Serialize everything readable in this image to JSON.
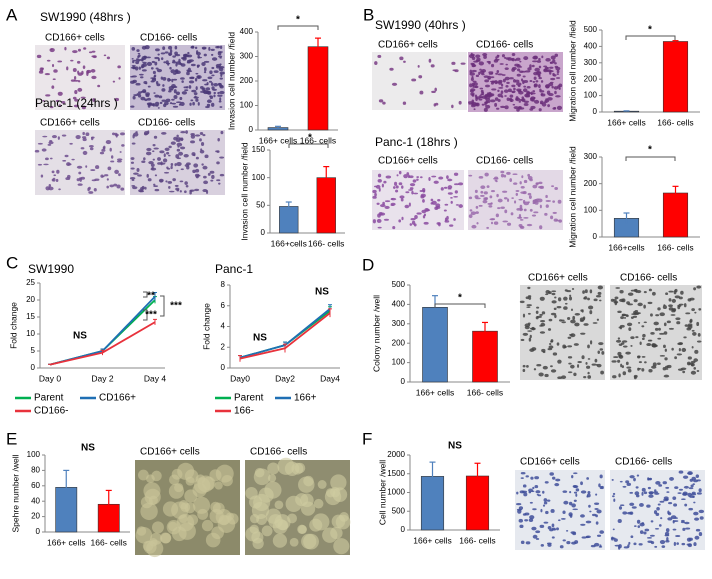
{
  "figure": {
    "panel_labels": [
      "A",
      "B",
      "C",
      "D",
      "E",
      "F"
    ],
    "image_captions": [
      "CD166+ cells",
      "CD166- cells",
      "CD166+ cells",
      "CD166- cells",
      "CD166+ cells",
      "CD166- cells",
      "CD166+ cells",
      "CD166- cells",
      "CD166+ cells",
      "CD166- cells",
      "CD166+ cells",
      "CD166- cells",
      "CD166+ cells",
      "CD166- cells"
    ]
  },
  "chart_data": [
    {
      "type": "bar",
      "title": "SW1990 (48hrs )",
      "y_label": "Invasion cell number /field",
      "categories": [
        "166+ cells",
        "166- cells"
      ],
      "values": [
        10,
        340
      ],
      "errors": [
        5,
        35
      ],
      "colors": [
        "#4f81bd",
        "#ff0000"
      ],
      "ylim": [
        0,
        400
      ],
      "yticks": [
        0,
        100,
        200,
        300,
        400
      ],
      "annotations": [
        "*"
      ]
    },
    {
      "type": "bar",
      "title": "Panc-1 (24hrs )",
      "y_label": "Invasion cell number /field",
      "categories": [
        "166+cells",
        "166- cells"
      ],
      "values": [
        48,
        100
      ],
      "errors": [
        8,
        20
      ],
      "colors": [
        "#4f81bd",
        "#ff0000"
      ],
      "ylim": [
        0,
        150
      ],
      "yticks": [
        0,
        50,
        100,
        150
      ],
      "annotations": [
        "*"
      ]
    },
    {
      "type": "bar",
      "title": "SW1990 (40hrs )",
      "y_label": "Migration cell number /field",
      "categories": [
        "166+ cells",
        "166- cells"
      ],
      "values": [
        5,
        430
      ],
      "errors": [
        2,
        5
      ],
      "colors": [
        "#4f81bd",
        "#ff0000"
      ],
      "ylim": [
        0,
        500
      ],
      "yticks": [
        0,
        100,
        200,
        300,
        400,
        500
      ],
      "annotations": [
        "*"
      ]
    },
    {
      "type": "bar",
      "title": "Panc-1 (18hrs )",
      "y_label": "Migration cell number /field",
      "categories": [
        "166+cells",
        "166- cells"
      ],
      "values": [
        70,
        165
      ],
      "errors": [
        20,
        25
      ],
      "colors": [
        "#4f81bd",
        "#ff0000"
      ],
      "ylim": [
        0,
        300
      ],
      "yticks": [
        0,
        100,
        200,
        300
      ],
      "annotations": [
        "*"
      ]
    },
    {
      "type": "line",
      "title": "SW1990",
      "y_label": "Fold change",
      "categories": [
        "Day 0",
        "Day 2",
        "Day 4"
      ],
      "series": [
        {
          "name": "Parent",
          "color": "#00b050",
          "values": [
            1,
            5,
            20
          ],
          "errors": [
            0.1,
            0.5,
            1
          ]
        },
        {
          "name": "CD166+",
          "color": "#1f6fb4",
          "values": [
            1,
            5,
            21
          ],
          "errors": [
            0.1,
            0.6,
            1.2
          ]
        },
        {
          "name": "CD166-",
          "color": "#e8323c",
          "values": [
            1,
            4.5,
            13.5
          ],
          "errors": [
            0.1,
            0.7,
            0.8
          ]
        }
      ],
      "ylim": [
        0,
        25
      ],
      "yticks": [
        0,
        5,
        10,
        15,
        20,
        25
      ],
      "annotations": [
        "**",
        "***",
        "***",
        "NS"
      ]
    },
    {
      "type": "line",
      "title": "Panc-1",
      "y_label": "Fold change",
      "categories": [
        "Day0",
        "Day2",
        "Day4"
      ],
      "series": [
        {
          "name": "Parent",
          "color": "#00b050",
          "values": [
            1,
            2.2,
            5.5
          ],
          "errors": [
            0.2,
            0.3,
            0.4
          ]
        },
        {
          "name": "166+",
          "color": "#1f6fb4",
          "values": [
            1,
            2.2,
            5.7
          ],
          "errors": [
            0.2,
            0.3,
            0.4
          ]
        },
        {
          "name": "166-",
          "color": "#e8323c",
          "values": [
            0.9,
            1.9,
            5.3
          ],
          "errors": [
            0.3,
            0.4,
            0.4
          ]
        }
      ],
      "ylim": [
        0,
        8
      ],
      "yticks": [
        0,
        2,
        4,
        6,
        8
      ],
      "annotations": [
        "NS",
        "NS"
      ]
    },
    {
      "type": "bar",
      "y_label": "Colony number /well",
      "categories": [
        "166+ cells",
        "166- cells"
      ],
      "values": [
        385,
        262
      ],
      "errors": [
        60,
        45
      ],
      "colors": [
        "#4f81bd",
        "#ff0000"
      ],
      "ylim": [
        0,
        500
      ],
      "yticks": [
        0,
        100,
        200,
        300,
        400,
        500
      ],
      "annotations": [
        "*"
      ]
    },
    {
      "type": "bar",
      "y_label": "Spehre number /well",
      "categories": [
        "166+ cells",
        "166- cells"
      ],
      "values": [
        58,
        36
      ],
      "errors": [
        22,
        18
      ],
      "colors": [
        "#4f81bd",
        "#ff0000"
      ],
      "ylim": [
        0,
        100
      ],
      "yticks": [
        0,
        20,
        40,
        60,
        80,
        100
      ],
      "annotations": [
        "NS"
      ]
    },
    {
      "type": "bar",
      "y_label": "Cell number /well",
      "categories": [
        "166+ cells",
        "166- cells"
      ],
      "values": [
        1430,
        1440
      ],
      "errors": [
        380,
        340
      ],
      "colors": [
        "#4f81bd",
        "#ff0000"
      ],
      "ylim": [
        0,
        2000
      ],
      "yticks": [
        0,
        500,
        1000,
        1500,
        2000
      ],
      "annotations": [
        "NS"
      ]
    }
  ]
}
